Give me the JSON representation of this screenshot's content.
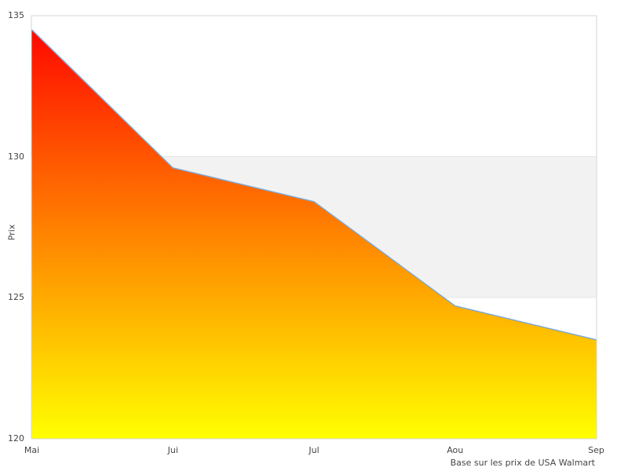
{
  "chart_data": {
    "type": "area",
    "categories": [
      "Mai",
      "Jui",
      "Jul",
      "Aou",
      "Sep"
    ],
    "values": [
      134.5,
      129.6,
      128.4,
      124.7,
      123.5
    ],
    "title": "",
    "xlabel": "",
    "ylabel": "Prix",
    "caption": "Base sur les prix de USA Walmart",
    "ylim": [
      120,
      135
    ],
    "yticks": [
      135,
      130,
      125,
      120
    ],
    "grid": false,
    "legend": "none",
    "reference_band": {
      "from": 125,
      "to": 130,
      "fill": "#f2f2f2",
      "edge": "#e6e6e6"
    },
    "line_color": "#7ea9d4",
    "fill_gradient": {
      "top": "#ff0000",
      "bottom": "#ffff00"
    },
    "plot_border_color": "#d4d4d4",
    "text_color": "#444444"
  }
}
